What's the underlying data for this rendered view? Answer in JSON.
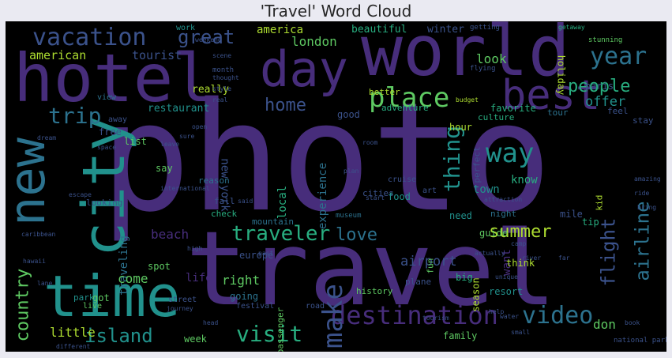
{
  "title": "'Travel' Word Cloud",
  "palette": {
    "background": "#000000",
    "purple": "#440154",
    "indigo": "#472d7b",
    "blue": "#3b528b",
    "steel": "#2c728e",
    "teal": "#21918c",
    "sea": "#28ae80",
    "green": "#5ec962",
    "lime": "#addc30",
    "yellow": "#fde725"
  },
  "words": [
    {
      "text": "photo",
      "color": "#472d7b"
    },
    {
      "text": "travel",
      "color": "#472d7b"
    },
    {
      "text": "world",
      "color": "#472d7b"
    },
    {
      "text": "hotel",
      "color": "#472d7b"
    },
    {
      "text": "new",
      "color": "#2c728e"
    },
    {
      "text": "city",
      "color": "#21918c"
    },
    {
      "text": "time",
      "color": "#21918c"
    },
    {
      "text": "day",
      "color": "#472d7b"
    },
    {
      "text": "best",
      "color": "#472d7b"
    },
    {
      "text": "vacation",
      "color": "#3b528b"
    },
    {
      "text": "year",
      "color": "#2c728e"
    },
    {
      "text": "place",
      "color": "#5ec962"
    },
    {
      "text": "great",
      "color": "#3b528b"
    },
    {
      "text": "trip",
      "color": "#2c728e"
    },
    {
      "text": "people",
      "color": "#28ae80"
    },
    {
      "text": "way",
      "color": "#21918c"
    },
    {
      "text": "thing",
      "color": "#21918c"
    },
    {
      "text": "traveler",
      "color": "#28ae80"
    },
    {
      "text": "love",
      "color": "#2c728e"
    },
    {
      "text": "airline",
      "color": "#2c728e"
    },
    {
      "text": "flight",
      "color": "#3b528b"
    },
    {
      "text": "summer",
      "color": "#addc30"
    },
    {
      "text": "destination",
      "color": "#472d7b"
    },
    {
      "text": "video",
      "color": "#2c728e"
    },
    {
      "text": "make",
      "color": "#3b528b"
    },
    {
      "text": "visit",
      "color": "#28ae80"
    },
    {
      "text": "island",
      "color": "#21918c"
    },
    {
      "text": "country",
      "color": "#5ec962"
    },
    {
      "text": "home",
      "color": "#3b528b"
    },
    {
      "text": "american",
      "color": "#addc30"
    },
    {
      "text": "tourist",
      "color": "#3b528b"
    },
    {
      "text": "america",
      "color": "#addc30"
    },
    {
      "text": "london",
      "color": "#5ec962"
    },
    {
      "text": "look",
      "color": "#5ec962"
    },
    {
      "text": "offer",
      "color": "#21918c"
    },
    {
      "text": "beautiful",
      "color": "#28ae80"
    },
    {
      "text": "winter",
      "color": "#3b528b"
    },
    {
      "text": "favorite",
      "color": "#28ae80"
    },
    {
      "text": "holiday",
      "color": "#addc30"
    },
    {
      "text": "paris",
      "color": "#3b528b"
    },
    {
      "text": "really",
      "color": "#addc30"
    },
    {
      "text": "restaurant",
      "color": "#21918c"
    },
    {
      "text": "new york",
      "color": "#3b528b"
    },
    {
      "text": "traveling",
      "color": "#2c728e"
    },
    {
      "text": "local",
      "color": "#28ae80"
    },
    {
      "text": "experience",
      "color": "#2c728e"
    },
    {
      "text": "want",
      "color": "#472d7b"
    },
    {
      "text": "know",
      "color": "#28ae80"
    },
    {
      "text": "town",
      "color": "#21918c"
    },
    {
      "text": "beach",
      "color": "#472d7b"
    },
    {
      "text": "airport",
      "color": "#3b528b"
    },
    {
      "text": "right",
      "color": "#5ec962"
    },
    {
      "text": "come",
      "color": "#5ec962"
    },
    {
      "text": "life",
      "color": "#472d7b"
    },
    {
      "text": "little",
      "color": "#addc30"
    },
    {
      "text": "don",
      "color": "#5ec962"
    },
    {
      "text": "cities",
      "color": "#3b528b"
    },
    {
      "text": "food",
      "color": "#21918c"
    },
    {
      "text": "mile",
      "color": "#3b528b"
    },
    {
      "text": "night",
      "color": "#2c728e"
    },
    {
      "text": "need",
      "color": "#21918c"
    },
    {
      "text": "tip",
      "color": "#28ae80"
    },
    {
      "text": "kid",
      "color": "#addc30"
    },
    {
      "text": "guide",
      "color": "#5ec962"
    },
    {
      "text": "think",
      "color": "#addc30"
    },
    {
      "text": "europe",
      "color": "#3b528b"
    },
    {
      "text": "season",
      "color": "#addc30"
    },
    {
      "text": "resort",
      "color": "#21918c"
    },
    {
      "text": "history",
      "color": "#5ec962"
    },
    {
      "text": "plane",
      "color": "#3b528b"
    },
    {
      "text": "big",
      "color": "#28ae80"
    },
    {
      "text": "fun",
      "color": "#5ec962"
    },
    {
      "text": "family",
      "color": "#5ec962"
    },
    {
      "text": "week",
      "color": "#5ec962"
    },
    {
      "text": "got",
      "color": "#5ec962"
    },
    {
      "text": "spot",
      "color": "#5ec962"
    },
    {
      "text": "going",
      "color": "#2c728e"
    },
    {
      "text": "passenger",
      "color": "#5ec962"
    },
    {
      "text": "hour",
      "color": "#addc30"
    },
    {
      "text": "adventure",
      "color": "#28ae80"
    },
    {
      "text": "good",
      "color": "#3b528b"
    },
    {
      "text": "better",
      "color": "#addc30"
    },
    {
      "text": "culture",
      "color": "#28ae80"
    },
    {
      "text": "tour",
      "color": "#2c728e"
    },
    {
      "text": "feel",
      "color": "#3b528b"
    },
    {
      "text": "stay",
      "color": "#3b528b"
    },
    {
      "text": "perfect",
      "color": "#3b528b"
    },
    {
      "text": "free",
      "color": "#3b528b"
    },
    {
      "text": "list",
      "color": "#5ec962"
    },
    {
      "text": "say",
      "color": "#5ec962"
    },
    {
      "text": "reason",
      "color": "#2c728e"
    },
    {
      "text": "mountain",
      "color": "#2c728e"
    },
    {
      "text": "check",
      "color": "#28ae80"
    },
    {
      "text": "fall",
      "color": "#3b528b"
    },
    {
      "text": "looking",
      "color": "#3b528b"
    },
    {
      "text": "work",
      "color": "#21918c"
    },
    {
      "text": "month",
      "color": "#3b528b"
    },
    {
      "text": "away",
      "color": "#3b528b"
    },
    {
      "text": "view",
      "color": "#2c728e"
    },
    {
      "text": "park",
      "color": "#21918c"
    },
    {
      "text": "live",
      "color": "#5ec962"
    },
    {
      "text": "street",
      "color": "#3b528b"
    },
    {
      "text": "festival",
      "color": "#3b528b"
    },
    {
      "text": "road",
      "color": "#3b528b"
    },
    {
      "text": "cruise",
      "color": "#3b528b"
    },
    {
      "text": "art",
      "color": "#3b528b"
    },
    {
      "text": "museum",
      "color": "#2c728e"
    },
    {
      "text": "getting",
      "color": "#3b528b"
    },
    {
      "text": "flying",
      "color": "#3b528b"
    },
    {
      "text": "stunning",
      "color": "#5ec962"
    },
    {
      "text": "getaway",
      "color": "#28ae80"
    },
    {
      "text": "national park",
      "color": "#3b528b"
    },
    {
      "text": "water",
      "color": "#3b528b"
    },
    {
      "text": "journey",
      "color": "#3b528b"
    },
    {
      "text": "tourism",
      "color": "#3b528b"
    },
    {
      "text": "international",
      "color": "#3b528b"
    },
    {
      "text": "budget",
      "color": "#addc30"
    },
    {
      "text": "small",
      "color": "#3b528b"
    },
    {
      "text": "river",
      "color": "#3b528b"
    },
    {
      "text": "style",
      "color": "#3b528b"
    },
    {
      "text": "thought",
      "color": "#3b528b"
    },
    {
      "text": "unique",
      "color": "#3b528b"
    },
    {
      "text": "attraction",
      "color": "#3b528b"
    },
    {
      "text": "bring",
      "color": "#3b528b"
    },
    {
      "text": "amazing",
      "color": "#3b528b"
    },
    {
      "text": "different",
      "color": "#3b528b"
    },
    {
      "text": "weekend",
      "color": "#3b528b"
    },
    {
      "text": "scene",
      "color": "#3b528b"
    },
    {
      "text": "real",
      "color": "#3b528b"
    },
    {
      "text": "high",
      "color": "#3b528b"
    },
    {
      "text": "far",
      "color": "#3b528b"
    },
    {
      "text": "open",
      "color": "#3b528b"
    },
    {
      "text": "space",
      "color": "#3b528b"
    },
    {
      "text": "dream",
      "color": "#3b528b"
    },
    {
      "text": "escape",
      "color": "#3b528b"
    },
    {
      "text": "caribbean",
      "color": "#3b528b"
    },
    {
      "text": "hawaii",
      "color": "#3b528b"
    },
    {
      "text": "lane",
      "color": "#3b528b"
    },
    {
      "text": "said",
      "color": "#3b528b"
    },
    {
      "text": "ride",
      "color": "#3b528b"
    },
    {
      "text": "book",
      "color": "#3b528b"
    },
    {
      "text": "help",
      "color": "#3b528b"
    },
    {
      "text": "head",
      "color": "#3b528b"
    },
    {
      "text": "past",
      "color": "#3b528b"
    },
    {
      "text": "start",
      "color": "#3b528b"
    },
    {
      "text": "sure",
      "color": "#3b528b"
    },
    {
      "text": "room",
      "color": "#3b528b"
    },
    {
      "text": "leave",
      "color": "#3b528b"
    },
    {
      "text": "plan",
      "color": "#3b528b"
    },
    {
      "text": "camp",
      "color": "#3b528b"
    },
    {
      "text": "actually",
      "color": "#3b528b"
    }
  ]
}
